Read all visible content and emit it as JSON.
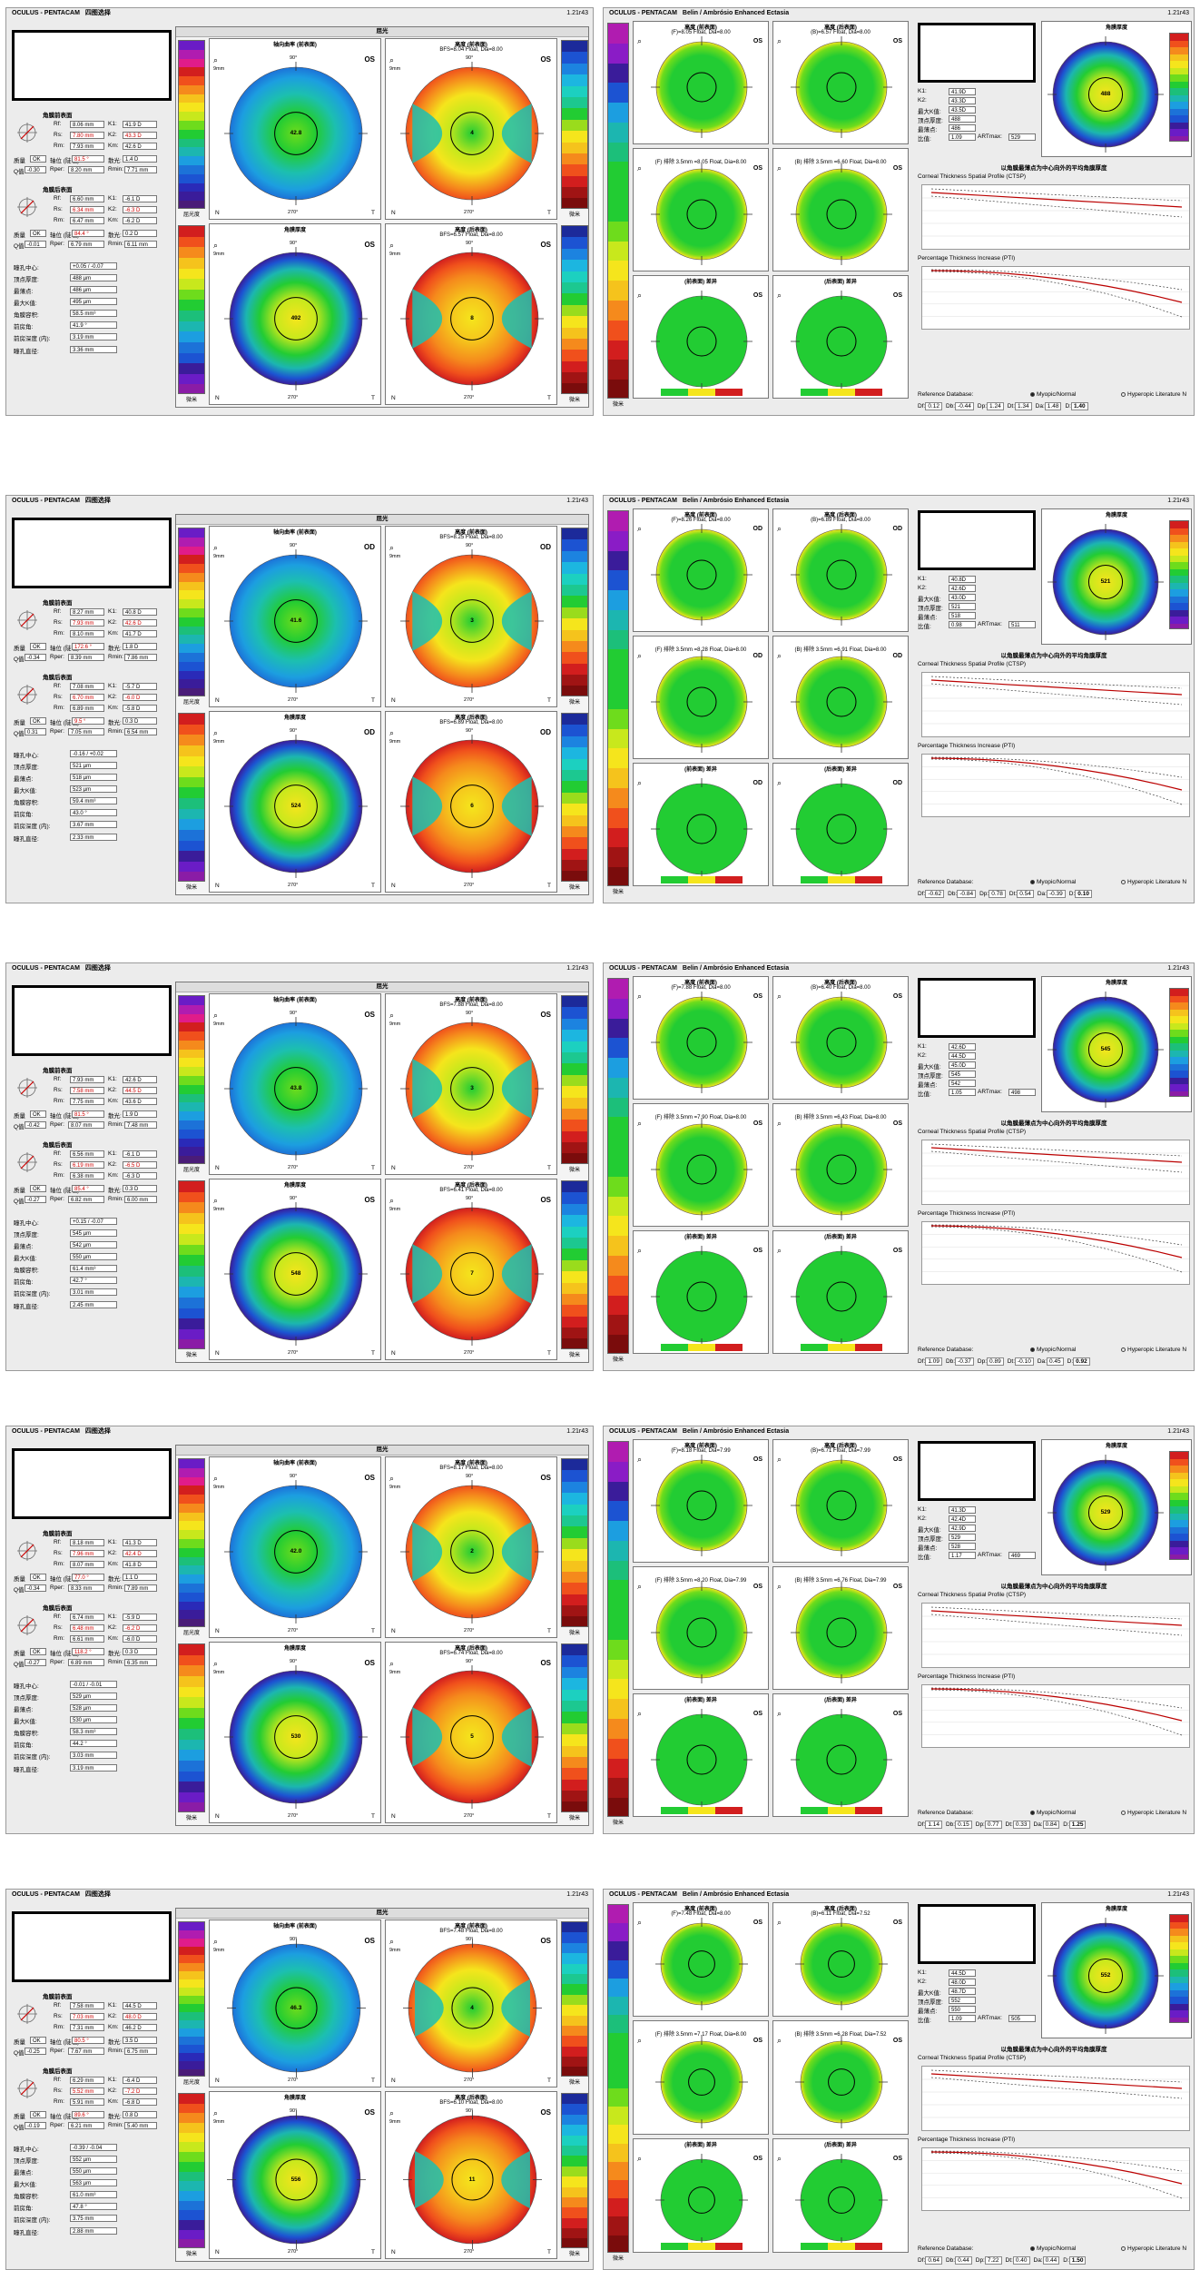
{
  "rows": [
    {
      "left": {
        "brand": "OCULUS - PENTACAM",
        "view": "四图选择",
        "version": "1.21r43",
        "win_title": "屈光",
        "eye": "OS",
        "top_left_title": "角膜前表面",
        "front": {
          "rf": "8.06 mm",
          "rs": "7.80 mm",
          "rm": "7.93 mm",
          "k1": "41.9 D",
          "k2": "43.3 D",
          "km": "42.6 D",
          "axis": "81.5 °",
          "astig": "1.4 D",
          "q": "-0.30",
          "rper": "8.20 mm",
          "rmin": "7.71 mm",
          "quality": "OK"
        },
        "back": {
          "rf": "6.60 mm",
          "rs": "6.34 mm",
          "rm": "6.47 mm",
          "k1": "-6.1 D",
          "k2": "-6.3 D",
          "km": "-6.2 D",
          "axis": "84.4 °",
          "astig": "0.2 D",
          "q": "-0.01",
          "rper": "6.79 mm",
          "rmin": "6.11 mm",
          "quality": "OK"
        },
        "pupil_center": "+0.05 / -0.07",
        "apex": "488 µm",
        "thinnest": "486 µm",
        "pachy_min": "495 µm",
        "cornea_volume": "58.5 mm³",
        "chamber_angle": "41.9 °",
        "acd": "3.19 mm",
        "pupil_dia": "3.36 mm",
        "map1": "轴向曲率 (前表面)",
        "map2": "高度 (前表面)",
        "map2_bfs": "BFS=8.04 Float, Dia=8.00",
        "map3": "角膜厚度",
        "map4": "高度 (后表面)",
        "map4_bfs": "BFS=6.57 Float, Dia=8.00",
        "center_values": [
          "42.8",
          "4",
          "492",
          "8"
        ]
      },
      "right": {
        "brand": "OCULUS - PENTACAM",
        "view": "Belin / Ambrósio Enhanced Ectasia",
        "version": "1.21r43",
        "a1": "高度 (前表面)",
        "a1s": "(F)=8.05 Float, Dia=8.00",
        "a2": "高度 (后表面)",
        "a2s": "(B)=6.57 Float, Dia=8.00",
        "b1s": "(F) 排除 3.5mm =8.05 Float, Dia=8.00",
        "b2s": "(B) 排除 3.5mm =6.60 Float, Dia=8.00",
        "c1": "(前表面) 差异",
        "c2": "(后表面) 差异",
        "eye": "OS",
        "k1": "41.9D",
        "k2": "43.3D",
        "kmax": "43.5D",
        "pachy_apex": "488",
        "thinnest": "486",
        "ratio": "1.09",
        "art": "529",
        "map_title": "角膜厚度",
        "ctsp": "Corneal Thickness Spatial Profile (CTSP)",
        "pti": "Percentage Thickness Increase (PTI)",
        "ctsp_cn": "以角膜最薄点为中心向外的平均角膜厚度",
        "ref_db": "Reference Database:",
        "myopic": "Myopic/Normal",
        "hyper": "Hyperopic Literature N",
        "df": "0.12",
        "db": "-0.44",
        "dp": "1.24",
        "dt": "1.34",
        "da": "1.48",
        "d": "1.40"
      }
    },
    {
      "left": {
        "brand": "OCULUS - PENTACAM",
        "view": "四图选择",
        "version": "1.21r43",
        "win_title": "屈光",
        "eye": "OD",
        "top_left_title": "角膜前表面",
        "front": {
          "rf": "8.27 mm",
          "rs": "7.93 mm",
          "rm": "8.10 mm",
          "k1": "40.8 D",
          "k2": "42.6 D",
          "km": "41.7 D",
          "axis": "172.6 °",
          "astig": "1.8 D",
          "q": "-0.34",
          "rper": "8.39 mm",
          "rmin": "7.86 mm",
          "quality": "OK"
        },
        "back": {
          "rf": "7.08 mm",
          "rs": "6.70 mm",
          "rm": "6.89 mm",
          "k1": "-5.7 D",
          "k2": "-6.0 D",
          "km": "-5.8 D",
          "axis": "9.5 °",
          "astig": "0.3 D",
          "q": "0.31",
          "rper": "7.05 mm",
          "rmin": "6.54 mm",
          "quality": "OK"
        },
        "pupil_center": "-0.16 / +0.02",
        "apex": "521 µm",
        "thinnest": "518 µm",
        "pachy_min": "523 µm",
        "cornea_volume": "59.4 mm³",
        "chamber_angle": "43.0 °",
        "acd": "3.67 mm",
        "pupil_dia": "2.33 mm",
        "map1": "轴向曲率 (前表面)",
        "map2": "高度 (前表面)",
        "map2_bfs": "BFS=8.25 Float, Dia=8.00",
        "map3": "角膜厚度",
        "map4": "高度 (后表面)",
        "map4_bfs": "BFS=6.89 Float, Dia=8.00",
        "center_values": [
          "41.6",
          "3",
          "524",
          "6"
        ]
      },
      "right": {
        "brand": "OCULUS - PENTACAM",
        "view": "Belin / Ambrósio Enhanced Ectasia",
        "version": "1.21r43",
        "a1": "高度 (前表面)",
        "a1s": "(F)=8.26 Float, Dia=8.00",
        "a2": "高度 (后表面)",
        "a2s": "(B)=6.89 Float, Dia=8.00",
        "b1s": "(F) 排除 3.5mm =8.28 Float, Dia=8.00",
        "b2s": "(B) 排除 3.5mm =6.91 Float, Dia=8.00",
        "c1": "(前表面) 差异",
        "c2": "(后表面) 差异",
        "eye": "OD",
        "k1": "40.8D",
        "k2": "42.6D",
        "kmax": "43.0D",
        "pachy_apex": "521",
        "thinnest": "518",
        "ratio": "0.98",
        "art": "511",
        "map_title": "角膜厚度",
        "ctsp": "Corneal Thickness Spatial Profile (CTSP)",
        "pti": "Percentage Thickness Increase (PTI)",
        "ctsp_cn": "以角膜最薄点为中心向外的平均角膜厚度",
        "ref_db": "Reference Database:",
        "myopic": "Myopic/Normal",
        "hyper": "Hyperopic Literature N",
        "df": "-0.62",
        "db": "-0.84",
        "dp": "0.78",
        "dt": "0.54",
        "da": "-0.39",
        "d": "0.10"
      }
    },
    {
      "left": {
        "brand": "OCULUS - PENTACAM",
        "view": "四图选择",
        "version": "1.21r43",
        "win_title": "屈光",
        "eye": "OS",
        "top_left_title": "角膜前表面",
        "front": {
          "rf": "7.93 mm",
          "rs": "7.58 mm",
          "rm": "7.75 mm",
          "k1": "42.6 D",
          "k2": "44.5 D",
          "km": "43.6 D",
          "axis": "81.5 °",
          "astig": "1.9 D",
          "q": "-0.42",
          "rper": "8.07 mm",
          "rmin": "7.48 mm",
          "quality": "OK"
        },
        "back": {
          "rf": "6.56 mm",
          "rs": "6.19 mm",
          "rm": "6.38 mm",
          "k1": "-6.1 D",
          "k2": "-6.5 D",
          "km": "-6.3 D",
          "axis": "85.4 °",
          "astig": "0.3 D",
          "q": "-0.27",
          "rper": "6.82 mm",
          "rmin": "6.00 mm",
          "quality": "OK"
        },
        "pupil_center": "+0.15 / -0.07",
        "apex": "545 µm",
        "thinnest": "542 µm",
        "pachy_min": "550 µm",
        "cornea_volume": "61.4 mm³",
        "chamber_angle": "42.7 °",
        "acd": "3.01 mm",
        "pupil_dia": "2.45 mm",
        "map1": "轴向曲率 (前表面)",
        "map2": "高度 (前表面)",
        "map2_bfs": "BFS=7.88 Float, Dia=8.00",
        "map3": "角膜厚度",
        "map4": "高度 (后表面)",
        "map4_bfs": "BFS=6.41 Float, Dia=8.00",
        "center_values": [
          "43.8",
          "3",
          "548",
          "7"
        ]
      },
      "right": {
        "brand": "OCULUS - PENTACAM",
        "view": "Belin / Ambrósio Enhanced Ectasia",
        "version": "1.21r43",
        "a1": "高度 (前表面)",
        "a1s": "(F)=7.88 Float, Dia=8.00",
        "a2": "高度 (后表面)",
        "a2s": "(B)=6.40 Float, Dia=8.00",
        "b1s": "(F) 排除 3.5mm =7.90 Float, Dia=8.00",
        "b2s": "(B) 排除 3.5mm =6.43 Float, Dia=8.00",
        "c1": "(前表面) 差异",
        "c2": "(后表面) 差异",
        "eye": "OS",
        "k1": "42.6D",
        "k2": "44.5D",
        "kmax": "45.0D",
        "pachy_apex": "545",
        "thinnest": "542",
        "ratio": "1.05",
        "art": "498",
        "map_title": "角膜厚度",
        "ctsp": "Corneal Thickness Spatial Profile (CTSP)",
        "pti": "Percentage Thickness Increase (PTI)",
        "ctsp_cn": "以角膜最薄点为中心向外的平均角膜厚度",
        "ref_db": "Reference Database:",
        "myopic": "Myopic/Normal",
        "hyper": "Hyperopic Literature N",
        "df": "1.09",
        "db": "-0.37",
        "dp": "0.89",
        "dt": "-0.10",
        "da": "0.45",
        "d": "0.92"
      }
    },
    {
      "left": {
        "brand": "OCULUS - PENTACAM",
        "view": "四图选择",
        "version": "1.21r43",
        "win_title": "屈光",
        "eye": "OS",
        "top_left_title": "角膜前表面",
        "front": {
          "rf": "8.18 mm",
          "rs": "7.96 mm",
          "rm": "8.07 mm",
          "k1": "41.3 D",
          "k2": "42.4 D",
          "km": "41.8 D",
          "axis": "77.0 °",
          "astig": "1.1 D",
          "q": "-0.34",
          "rper": "8.33 mm",
          "rmin": "7.89 mm",
          "quality": "OK"
        },
        "back": {
          "rf": "6.74 mm",
          "rs": "6.48 mm",
          "rm": "6.61 mm",
          "k1": "-5.9 D",
          "k2": "-6.2 D",
          "km": "-6.0 D",
          "axis": "118.2 °",
          "astig": "0.3 D",
          "q": "-0.27",
          "rper": "6.89 mm",
          "rmin": "6.35 mm",
          "quality": "OK"
        },
        "pupil_center": "-0.01 / -0.01",
        "apex": "529 µm",
        "thinnest": "528 µm",
        "pachy_min": "530 µm",
        "cornea_volume": "58.3 mm³",
        "chamber_angle": "44.2 °",
        "acd": "3.03 mm",
        "pupil_dia": "3.19 mm",
        "map1": "轴向曲率 (前表面)",
        "map2": "高度 (前表面)",
        "map2_bfs": "BFS=8.17 Float, Dia=8.00",
        "map3": "角膜厚度",
        "map4": "高度 (后表面)",
        "map4_bfs": "BFS=6.74 Float, Dia=8.00",
        "center_values": [
          "42.0",
          "2",
          "530",
          "5"
        ]
      },
      "right": {
        "brand": "OCULUS - PENTACAM",
        "view": "Belin / Ambrósio Enhanced Ectasia",
        "version": "1.21r43",
        "a1": "高度 (前表面)",
        "a1s": "(F)=8.18 Float, Dia=7.99",
        "a2": "高度 (后表面)",
        "a2s": "(B)=6.71 Float, Dia=7.99",
        "b1s": "(F) 排除 3.5mm =8.20 Float, Dia=7.99",
        "b2s": "(B) 排除 3.5mm =6.76 Float, Dia=7.99",
        "c1": "(前表面) 差异",
        "c2": "(后表面) 差异",
        "eye": "OS",
        "k1": "41.3D",
        "k2": "42.4D",
        "kmax": "42.9D",
        "pachy_apex": "529",
        "thinnest": "528",
        "ratio": "1.17",
        "art": "469",
        "map_title": "角膜厚度",
        "ctsp": "Corneal Thickness Spatial Profile (CTSP)",
        "pti": "Percentage Thickness Increase (PTI)",
        "ctsp_cn": "以角膜最薄点为中心向外的平均角膜厚度",
        "ref_db": "Reference Database:",
        "myopic": "Myopic/Normal",
        "hyper": "Hyperopic Literature N",
        "df": "1.14",
        "db": "0.15",
        "dp": "0.77",
        "dt": "0.33",
        "da": "0.84",
        "d": "1.25"
      }
    },
    {
      "left": {
        "brand": "OCULUS - PENTACAM",
        "view": "四图选择",
        "version": "1.21r43",
        "win_title": "屈光",
        "eye": "OS",
        "top_left_title": "角膜前表面",
        "front": {
          "rf": "7.58 mm",
          "rs": "7.03 mm",
          "rm": "7.31 mm",
          "k1": "44.5 D",
          "k2": "48.0 D",
          "km": "46.2 D",
          "axis": "80.5 °",
          "astig": "3.5 D",
          "q": "-0.25",
          "rper": "7.67 mm",
          "rmin": "6.75 mm",
          "quality": "OK"
        },
        "back": {
          "rf": "6.29 mm",
          "rs": "5.52 mm",
          "rm": "5.91 mm",
          "k1": "-6.4 D",
          "k2": "-7.2 D",
          "km": "-6.8 D",
          "axis": "89.6 °",
          "astig": "0.8 D",
          "q": "-0.19",
          "rper": "6.21 mm",
          "rmin": "5.40 mm",
          "quality": "OK"
        },
        "pupil_center": "-0.39 / -0.04",
        "apex": "552 µm",
        "thinnest": "550 µm",
        "pachy_min": "563 µm",
        "cornea_volume": "61.0 mm³",
        "chamber_angle": "47.8 °",
        "acd": "3.75 mm",
        "pupil_dia": "2.88 mm",
        "map1": "轴向曲率 (前表面)",
        "map2": "高度 (前表面)",
        "map2_bfs": "BFS=7.48 Float, Dia=8.00",
        "map3": "角膜厚度",
        "map4": "高度 (后表面)",
        "map4_bfs": "BFS=6.10 Float, Dia=8.00",
        "center_values": [
          "46.3",
          "4",
          "556",
          "11"
        ]
      },
      "right": {
        "brand": "OCULUS - PENTACAM",
        "view": "Belin / Ambrósio Enhanced Ectasia",
        "version": "1.21r43",
        "a1": "高度 (前表面)",
        "a1s": "(F)=7.48 Float, Dia=8.00",
        "a2": "高度 (后表面)",
        "a2s": "(B)=6.11 Float, Dia=7.52",
        "b1s": "(F) 排除 3.5mm =7.17 Float, Dia=8.00",
        "b2s": "(B) 排除 3.5mm =6.28 Float, Dia=7.52",
        "c1": "(前表面) 差异",
        "c2": "(后表面) 差异",
        "eye": "OS",
        "k1": "44.5D",
        "k2": "48.0D",
        "kmax": "48.7D",
        "pachy_apex": "552",
        "thinnest": "550",
        "ratio": "1.09",
        "art": "505",
        "map_title": "角膜厚度",
        "ctsp": "Corneal Thickness Spatial Profile (CTSP)",
        "pti": "Percentage Thickness Increase (PTI)",
        "ctsp_cn": "以角膜最薄点为中心向外的平均角膜厚度",
        "ref_db": "Reference Database:",
        "myopic": "Myopic/Normal",
        "hyper": "Hyperopic Literature N",
        "df": "0.64",
        "db": "0.44",
        "dp": "7.22",
        "dt": "0.40",
        "da": "0.44",
        "d": "1.50"
      }
    }
  ],
  "labels": {
    "rf": "Rf:",
    "rs": "Rs:",
    "rm": "Rm:",
    "k1": "K1:",
    "k2": "K2:",
    "km": "Km:",
    "axis": "轴位 (陡轴)",
    "astig": "散光:",
    "q": "Q值",
    "rper": "Rper:",
    "rmin": "Rmin:",
    "quality": "质量",
    "pupil_center": "瞳孔中心:",
    "apex": "顶点厚度:",
    "thinnest": "最薄点:",
    "kmax": "最大K值:",
    "cornea_volume": "角膜容积:",
    "chamber_angle": "前房角:",
    "acd": "前房深度 (内):",
    "pupil_dia": "瞳孔直径:",
    "back_title": "角膜后表面",
    "k1s": "K1:",
    "k2s": "K2:",
    "kmaxs": "最大K值:",
    "apexs": "顶点厚度:",
    "thins": "最薄点:",
    "ratio": "比值:",
    "art": "ARTmax:",
    "mm": "9mm",
    "n": "N",
    "t": "T",
    "deg90": "90°",
    "deg270": "270°",
    "scale_unit_d": "屈光度",
    "scale_unit_um": "微米",
    "scale_step": "0.25 D",
    "scale_step_um": "10 µm",
    "df": "Df:",
    "db": "Db:",
    "dp": "Dp:",
    "dt": "Dt:",
    "da": "Da:",
    "d": "D:",
    "axis_0": "0",
    "axis_2": "2",
    "axis_4": "4",
    "axis_6": "6",
    "axis_8": "8",
    "axis_10": "10 mm",
    "thickness_unit": "厚度"
  },
  "colors": {
    "panel_bg": "#ececec",
    "green_map": "#22cc33",
    "yellow": "#f5e51c",
    "orange": "#f58a1c",
    "red": "#d21e1e",
    "cyan": "#1cbfe0",
    "blue": "#1c53d2",
    "teal": "#1ca890",
    "magenta": "#b01cb0",
    "purple": "#6a1cc6"
  }
}
